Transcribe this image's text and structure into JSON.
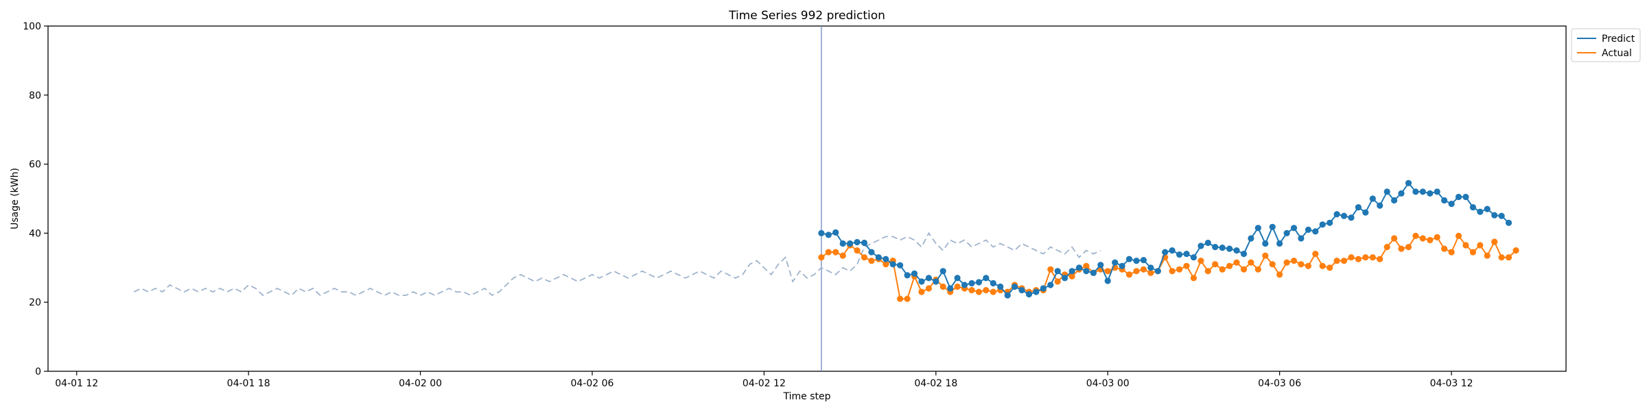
{
  "chart_data": {
    "type": "line",
    "title": "Time Series 992 prediction",
    "xlabel": "Time step",
    "ylabel": "Usage (kWh)",
    "ylim": [
      0,
      100
    ],
    "xlim": [
      "04-01 11:00",
      "04-03 16:00"
    ],
    "grid": false,
    "legend_position": "outside-top-right",
    "x_interval_minutes": 15,
    "yticks": [
      0,
      20,
      40,
      60,
      80,
      100
    ],
    "xticks": [
      {
        "time": "04-01 12:00",
        "label": "04-01 12"
      },
      {
        "time": "04-01 18:00",
        "label": "04-01 18"
      },
      {
        "time": "04-02 00:00",
        "label": "04-02 00"
      },
      {
        "time": "04-02 06:00",
        "label": "04-02 06"
      },
      {
        "time": "04-02 12:00",
        "label": "04-02 12"
      },
      {
        "time": "04-02 18:00",
        "label": "04-02 18"
      },
      {
        "time": "04-03 00:00",
        "label": "04-03 00"
      },
      {
        "time": "04-03 06:00",
        "label": "04-03 06"
      },
      {
        "time": "04-03 12:00",
        "label": "04-03 12"
      }
    ],
    "forecast_start": "04-02 14:00",
    "series": [
      {
        "name": "",
        "role": "history",
        "color": "#9fb3cc",
        "start": "04-01 14:00",
        "values": [
          23,
          24,
          23,
          24,
          23,
          25,
          24,
          23,
          24,
          23,
          24,
          23,
          24,
          23,
          24,
          23,
          25,
          24,
          22,
          23,
          24,
          23,
          22,
          24,
          23,
          24,
          22,
          23,
          24,
          23,
          23,
          22,
          23,
          24,
          23,
          22,
          23,
          22,
          22,
          23,
          22,
          23,
          22,
          23,
          24,
          23,
          23,
          22,
          23,
          24,
          22,
          23,
          25,
          27,
          28,
          27,
          26,
          27,
          26,
          27,
          28,
          27,
          26,
          27,
          28,
          27,
          28,
          29,
          28,
          27,
          28,
          29,
          28,
          27,
          28,
          29,
          28,
          27,
          28,
          29,
          28,
          27,
          29,
          28,
          27,
          28,
          31,
          32,
          30,
          28,
          31,
          33,
          26,
          29,
          27,
          28,
          30,
          29,
          28,
          30,
          29,
          31,
          36,
          37,
          38,
          39,
          39,
          38,
          39,
          38,
          36,
          40,
          37,
          35,
          38,
          37,
          38,
          36,
          37,
          38,
          36,
          37,
          36,
          35,
          37,
          36,
          35,
          34,
          36,
          35,
          34,
          36,
          33,
          35,
          34,
          35
        ]
      },
      {
        "name": "Predict",
        "role": "forecast",
        "color": "#1f77b4",
        "start": "04-02 14:00",
        "values": [
          40,
          39.5,
          40.2,
          37,
          37,
          37.4,
          37.2,
          34.5,
          33,
          32.5,
          31,
          30.7,
          27.8,
          28.3,
          26,
          27,
          26,
          29,
          24,
          27,
          25,
          25.5,
          25.8,
          27,
          25.5,
          24.5,
          22,
          24.5,
          23.5,
          22.3,
          23,
          24,
          25,
          29,
          27,
          29,
          30,
          29,
          28.5,
          30.8,
          26.2,
          31.5,
          30.5,
          32.5,
          32,
          32.2,
          30,
          29,
          34.5,
          35,
          33.8,
          34,
          33,
          36.3,
          37.2,
          36,
          35.8,
          35.5,
          35,
          34,
          38.5,
          41.5,
          37,
          41.8,
          37,
          40,
          41.5,
          38.5,
          41,
          40.5,
          42.5,
          43,
          45.5,
          45,
          44.5,
          47.5,
          46,
          50,
          48,
          52,
          49.5,
          51.5,
          54.5,
          52,
          52,
          51.5,
          52,
          49.5,
          48.5,
          50.5,
          50.5,
          47.5,
          46.2,
          47,
          45.2,
          45,
          43
        ]
      },
      {
        "name": "Actual",
        "role": "actual",
        "color": "#ff7f0e",
        "start": "04-02 14:00",
        "values": [
          33,
          34.5,
          34.5,
          33.5,
          36.5,
          35,
          33,
          32,
          32.5,
          31,
          32,
          21,
          21,
          27.5,
          23,
          24,
          26.5,
          24.5,
          23,
          24.5,
          24,
          23.5,
          23,
          23.5,
          23,
          23.5,
          23,
          25,
          24,
          23,
          23.5,
          23.5,
          29.5,
          26,
          28,
          27.5,
          29.5,
          30.5,
          28.5,
          29.5,
          29,
          30,
          29.5,
          28,
          29,
          29.5,
          28.5,
          29,
          33,
          29,
          29.5,
          30.5,
          27,
          32,
          29,
          31,
          29.5,
          30.5,
          31.5,
          29.5,
          31.5,
          29.5,
          33.5,
          31,
          28,
          31.5,
          32,
          31,
          30.5,
          34,
          30.5,
          30,
          32,
          32,
          33,
          32.5,
          33,
          33,
          32.5,
          36,
          38.5,
          35.5,
          36,
          39.2,
          38.5,
          38,
          38.8,
          35.5,
          34.5,
          39.2,
          36.5,
          34.5,
          36.5,
          33.5,
          37.5,
          33,
          33,
          35
        ]
      }
    ]
  }
}
